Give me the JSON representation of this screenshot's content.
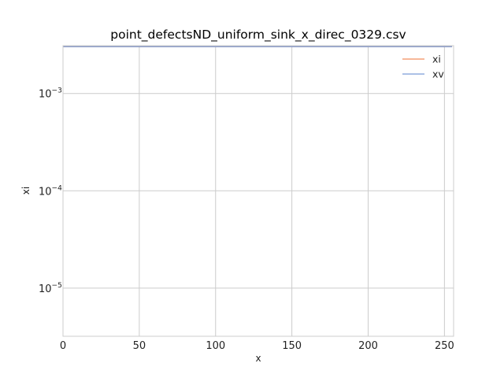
{
  "chart_data": {
    "type": "line",
    "title": "point_defectsND_uniform_sink_x_direc_0329.csv",
    "xlabel": "x",
    "ylabel": "xi",
    "xlim": [
      0,
      256
    ],
    "ylim": [
      3.2e-06,
      0.0031
    ],
    "yscale": "log",
    "grid": true,
    "legend_position": "top-right",
    "x_ticks": [
      0,
      50,
      100,
      150,
      200,
      250
    ],
    "y_ticks": [
      {
        "value": 1e-05,
        "base": "10",
        "exponent": "−5"
      },
      {
        "value": 0.0001,
        "base": "10",
        "exponent": "−4"
      },
      {
        "value": 0.001,
        "base": "10",
        "exponent": "−3"
      }
    ],
    "series": [
      {
        "name": "xi",
        "color": "#f28e5c",
        "x": [
          0,
          128,
          255
        ],
        "y": [
          0.00302,
          0.00302,
          0.00302
        ]
      },
      {
        "name": "xv",
        "color": "#7b9cd8",
        "x": [
          0,
          128,
          255
        ],
        "y": [
          0.00303,
          0.00303,
          0.00303
        ]
      }
    ]
  }
}
